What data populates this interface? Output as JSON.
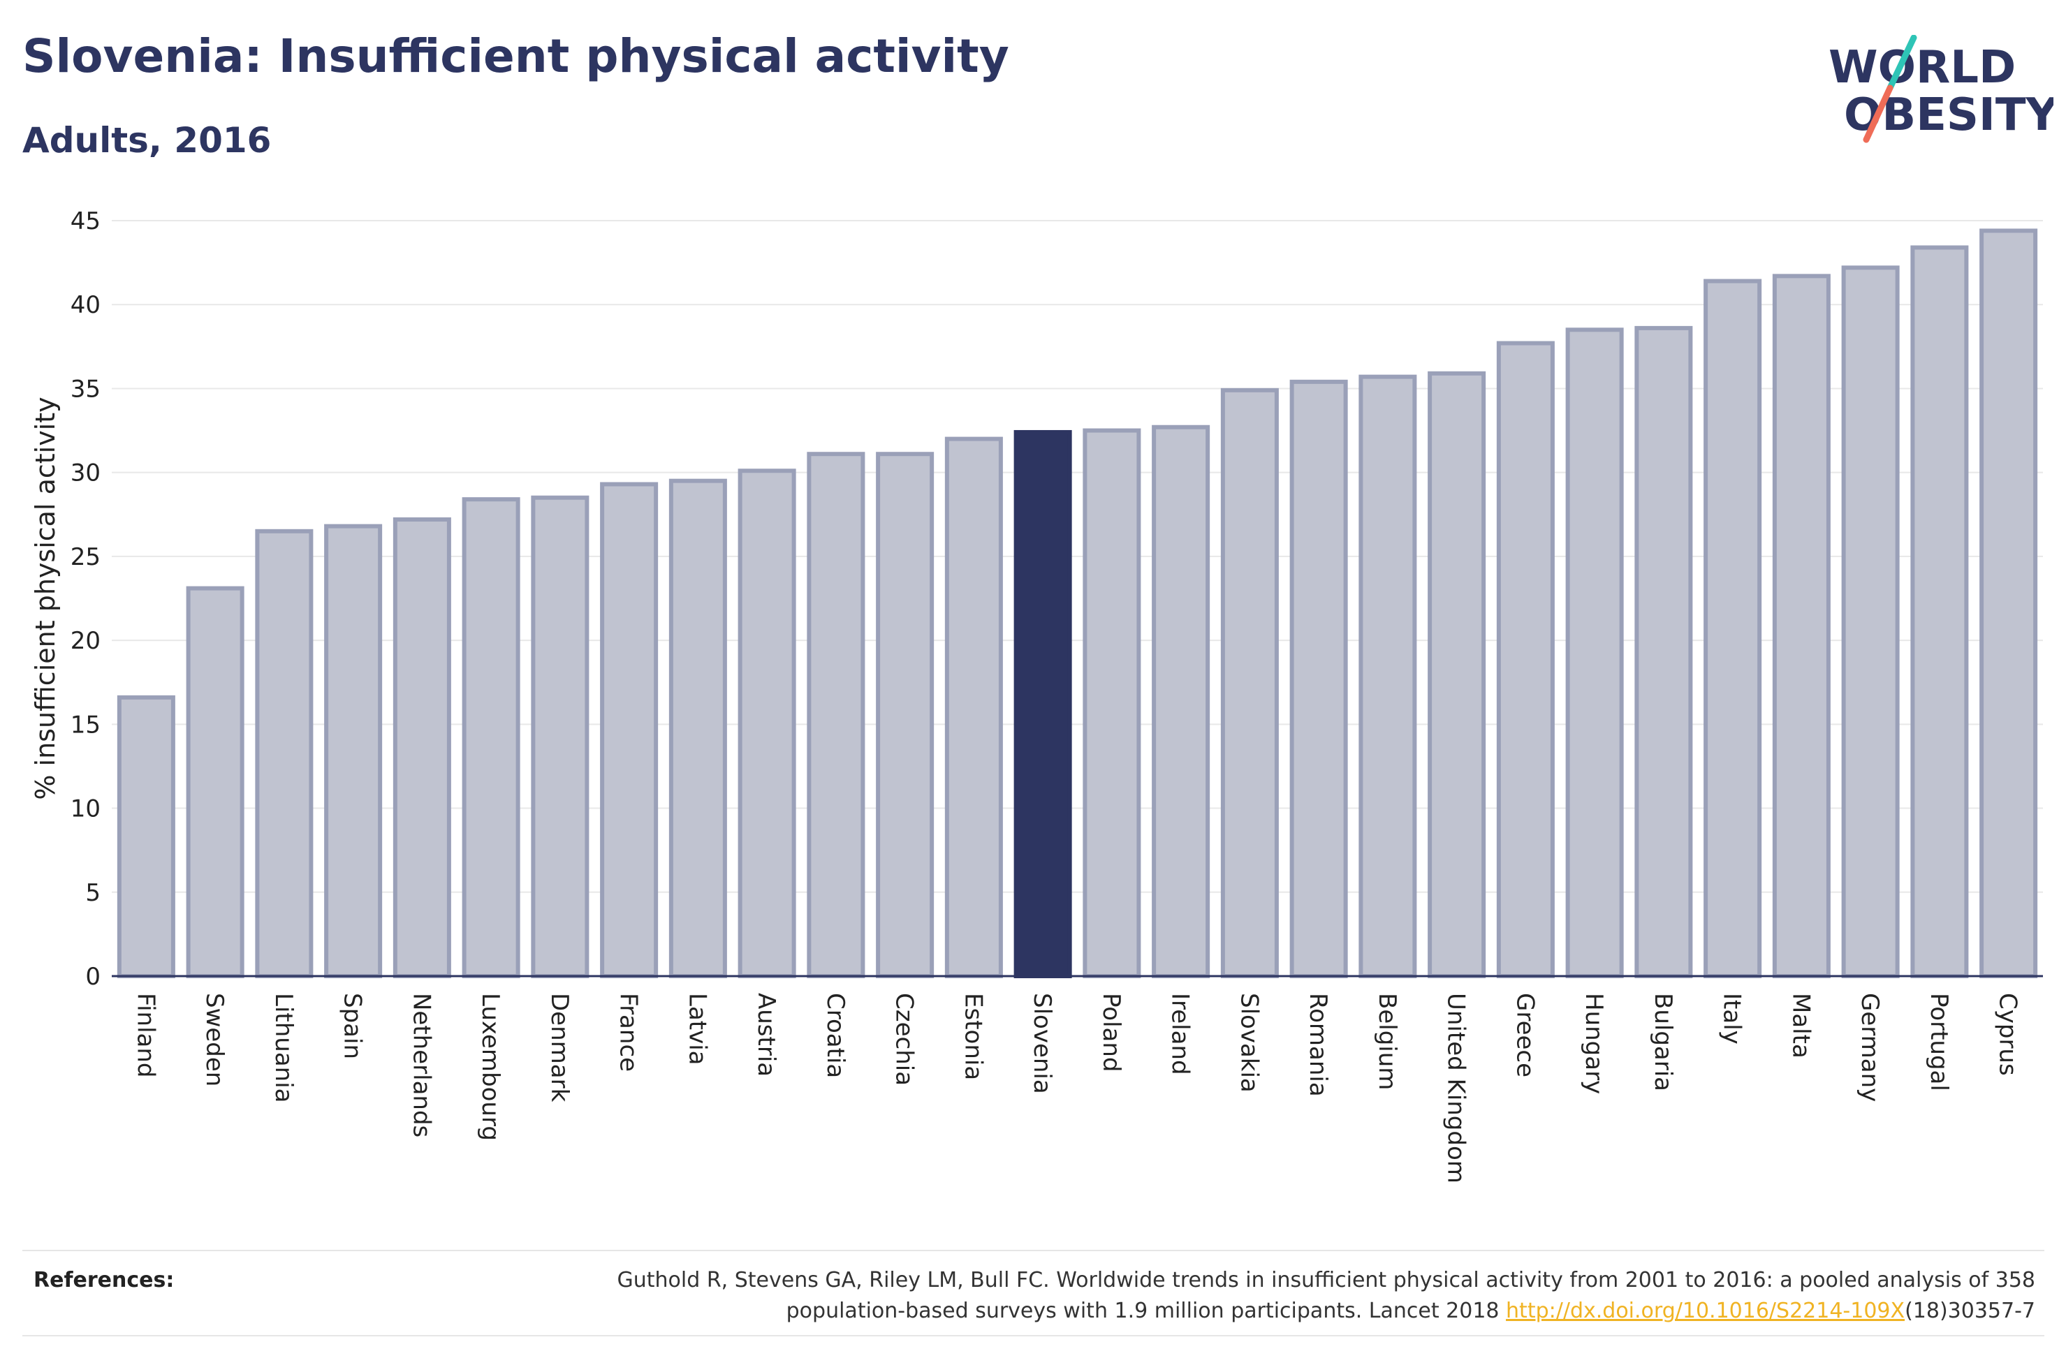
{
  "header": {
    "title": "Slovenia: Insufficient physical activity",
    "subtitle": "Adults, 2016"
  },
  "logo": {
    "line1_prefix": "W",
    "line1_o": "O",
    "line1_suffix": "RLD",
    "line2": "OBESITY",
    "colors": {
      "text": "#2d3561",
      "slash_top": "#2ec4b6",
      "slash_bottom": "#ef6c57"
    }
  },
  "chart_data": {
    "type": "bar",
    "title": "",
    "xlabel": "",
    "ylabel": "% insufficient physical activity",
    "ylim": [
      0,
      45
    ],
    "yticks": [
      0,
      5,
      10,
      15,
      20,
      25,
      30,
      35,
      40,
      45
    ],
    "grid": true,
    "highlight": "Slovenia",
    "colors": {
      "bar_fill": "#c0c3d0",
      "bar_stroke": "#9aa0b8",
      "highlight": "#2d3561",
      "grid": "#e8e8e8",
      "axis": "#2d3561"
    },
    "categories": [
      "Finland",
      "Sweden",
      "Lithuania",
      "Spain",
      "Netherlands",
      "Luxembourg",
      "Denmark",
      "France",
      "Latvia",
      "Austria",
      "Croatia",
      "Czechia",
      "Estonia",
      "Slovenia",
      "Poland",
      "Ireland",
      "Slovakia",
      "Romania",
      "Belgium",
      "United Kingdom",
      "Greece",
      "Hungary",
      "Bulgaria",
      "Italy",
      "Malta",
      "Germany",
      "Portugal",
      "Cyprus"
    ],
    "values": [
      16.6,
      23.1,
      26.5,
      26.8,
      27.2,
      28.4,
      28.5,
      29.3,
      29.5,
      30.1,
      31.1,
      31.1,
      32.0,
      32.4,
      32.5,
      32.7,
      34.9,
      35.4,
      35.7,
      35.9,
      37.7,
      38.5,
      38.6,
      41.4,
      41.7,
      42.2,
      43.4,
      44.4
    ]
  },
  "references": {
    "label": "References:",
    "line1": "Guthold R, Stevens GA, Riley LM, Bull FC. Worldwide trends in insufficient physical activity from 2001 to 2016: a pooled analysis of 358",
    "line2_prefix": "population-based surveys with 1.9 million participants. Lancet 2018 ",
    "link": "http://dx.doi.org/10.1016/S2214-109X",
    "line2_suffix": "(18)30357-7"
  }
}
